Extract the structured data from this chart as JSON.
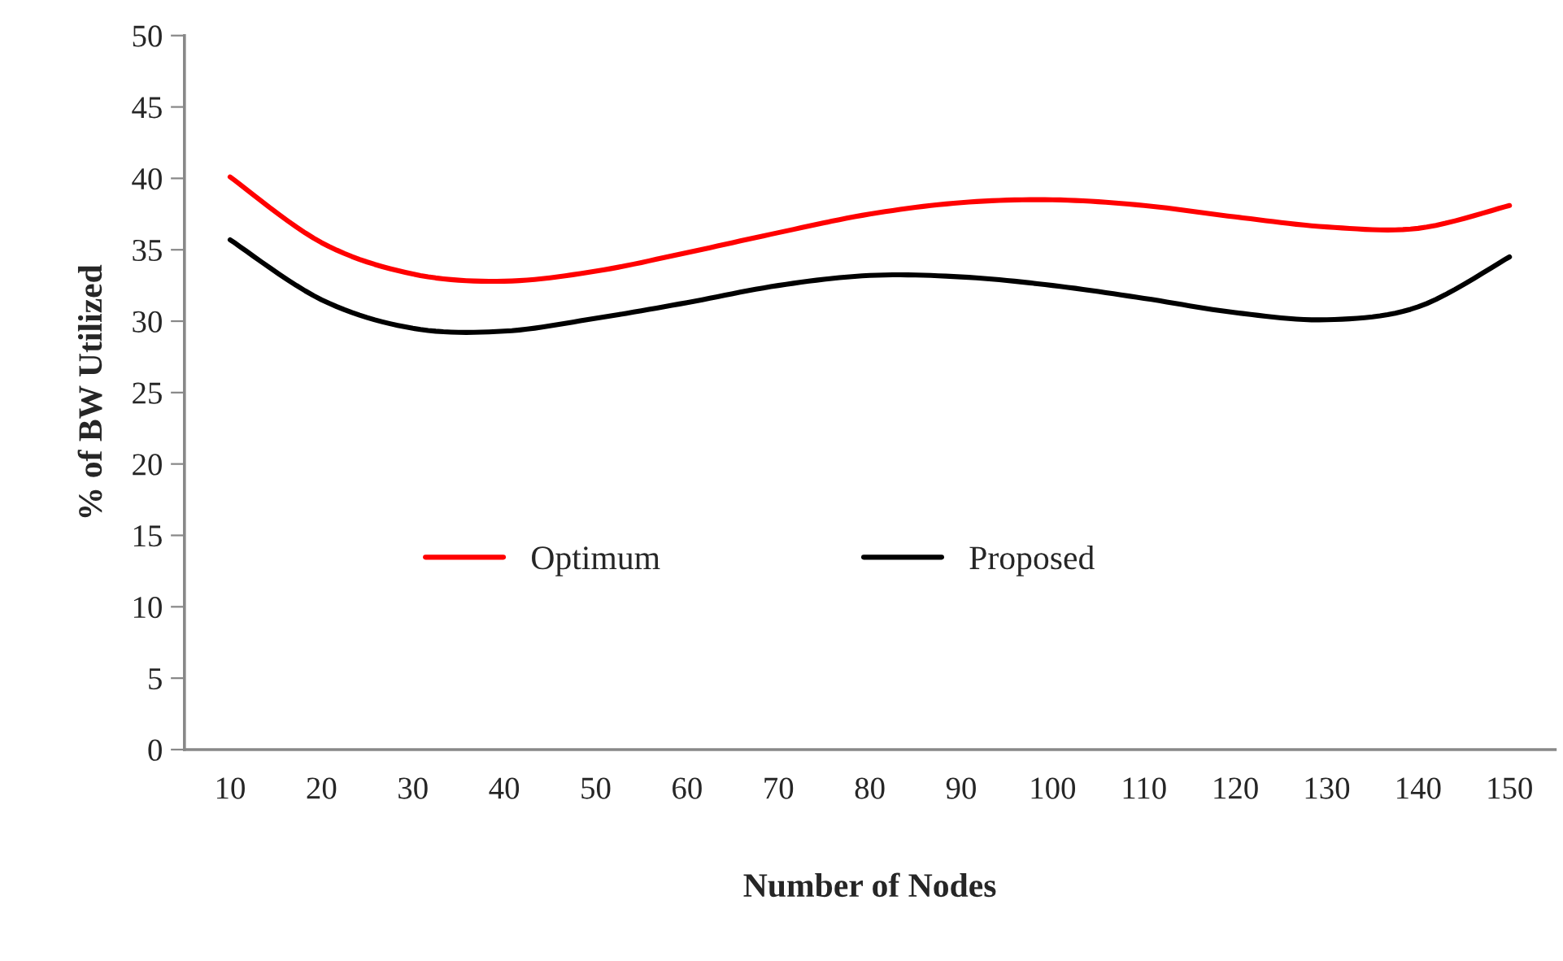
{
  "chart_data": {
    "type": "line",
    "xlabel": "Number of Nodes",
    "ylabel": "% of BW Utilized",
    "categories": [
      "10",
      "20",
      "30",
      "40",
      "50",
      "60",
      "70",
      "80",
      "90",
      "100",
      "110",
      "120",
      "130",
      "140",
      "150"
    ],
    "series": [
      {
        "name": "Optimum",
        "color": "#ff0000",
        "values": [
          40.1,
          35.5,
          33.3,
          32.8,
          33.5,
          34.8,
          36.2,
          37.5,
          38.3,
          38.5,
          38.1,
          37.3,
          36.6,
          36.5,
          38.1
        ]
      },
      {
        "name": "Proposed",
        "color": "#000000",
        "values": [
          35.7,
          31.5,
          29.5,
          29.3,
          30.2,
          31.3,
          32.5,
          33.2,
          33.1,
          32.5,
          31.6,
          30.6,
          30.1,
          31.0,
          34.5
        ]
      }
    ],
    "ylim": [
      0,
      50
    ],
    "yticks": [
      0,
      5,
      10,
      15,
      20,
      25,
      30,
      35,
      40,
      45,
      50
    ],
    "grid": false,
    "legend": "lower center",
    "marker": "none",
    "line_style": "solid"
  }
}
